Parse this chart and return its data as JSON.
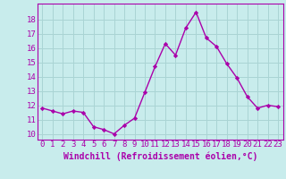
{
  "x": [
    0,
    1,
    2,
    3,
    4,
    5,
    6,
    7,
    8,
    9,
    10,
    11,
    12,
    13,
    14,
    15,
    16,
    17,
    18,
    19,
    20,
    21,
    22,
    23
  ],
  "y": [
    11.8,
    11.6,
    11.4,
    11.6,
    11.5,
    10.5,
    10.3,
    10.0,
    10.6,
    11.1,
    12.9,
    14.7,
    16.3,
    15.5,
    17.4,
    18.5,
    16.7,
    16.1,
    14.9,
    13.9,
    12.6,
    11.8,
    12.0,
    11.9
  ],
  "line_color": "#aa00aa",
  "marker": "D",
  "marker_size": 2.2,
  "bg_color": "#c8ecec",
  "grid_color": "#aad4d4",
  "xlabel": "Windchill (Refroidissement éolien,°C)",
  "xlabel_fontsize": 7,
  "xtick_labels": [
    "0",
    "1",
    "2",
    "3",
    "4",
    "5",
    "6",
    "7",
    "8",
    "9",
    "10",
    "11",
    "12",
    "13",
    "14",
    "15",
    "16",
    "17",
    "18",
    "19",
    "20",
    "21",
    "22",
    "23"
  ],
  "ytick_labels": [
    "10",
    "11",
    "12",
    "13",
    "14",
    "15",
    "16",
    "17",
    "18"
  ],
  "yticks": [
    10,
    11,
    12,
    13,
    14,
    15,
    16,
    17,
    18
  ],
  "ylim": [
    9.6,
    19.1
  ],
  "xlim": [
    -0.5,
    23.5
  ],
  "tick_color": "#aa00aa",
  "tick_fontsize": 6.5,
  "line_width": 1.0,
  "spine_color": "#aa00aa"
}
